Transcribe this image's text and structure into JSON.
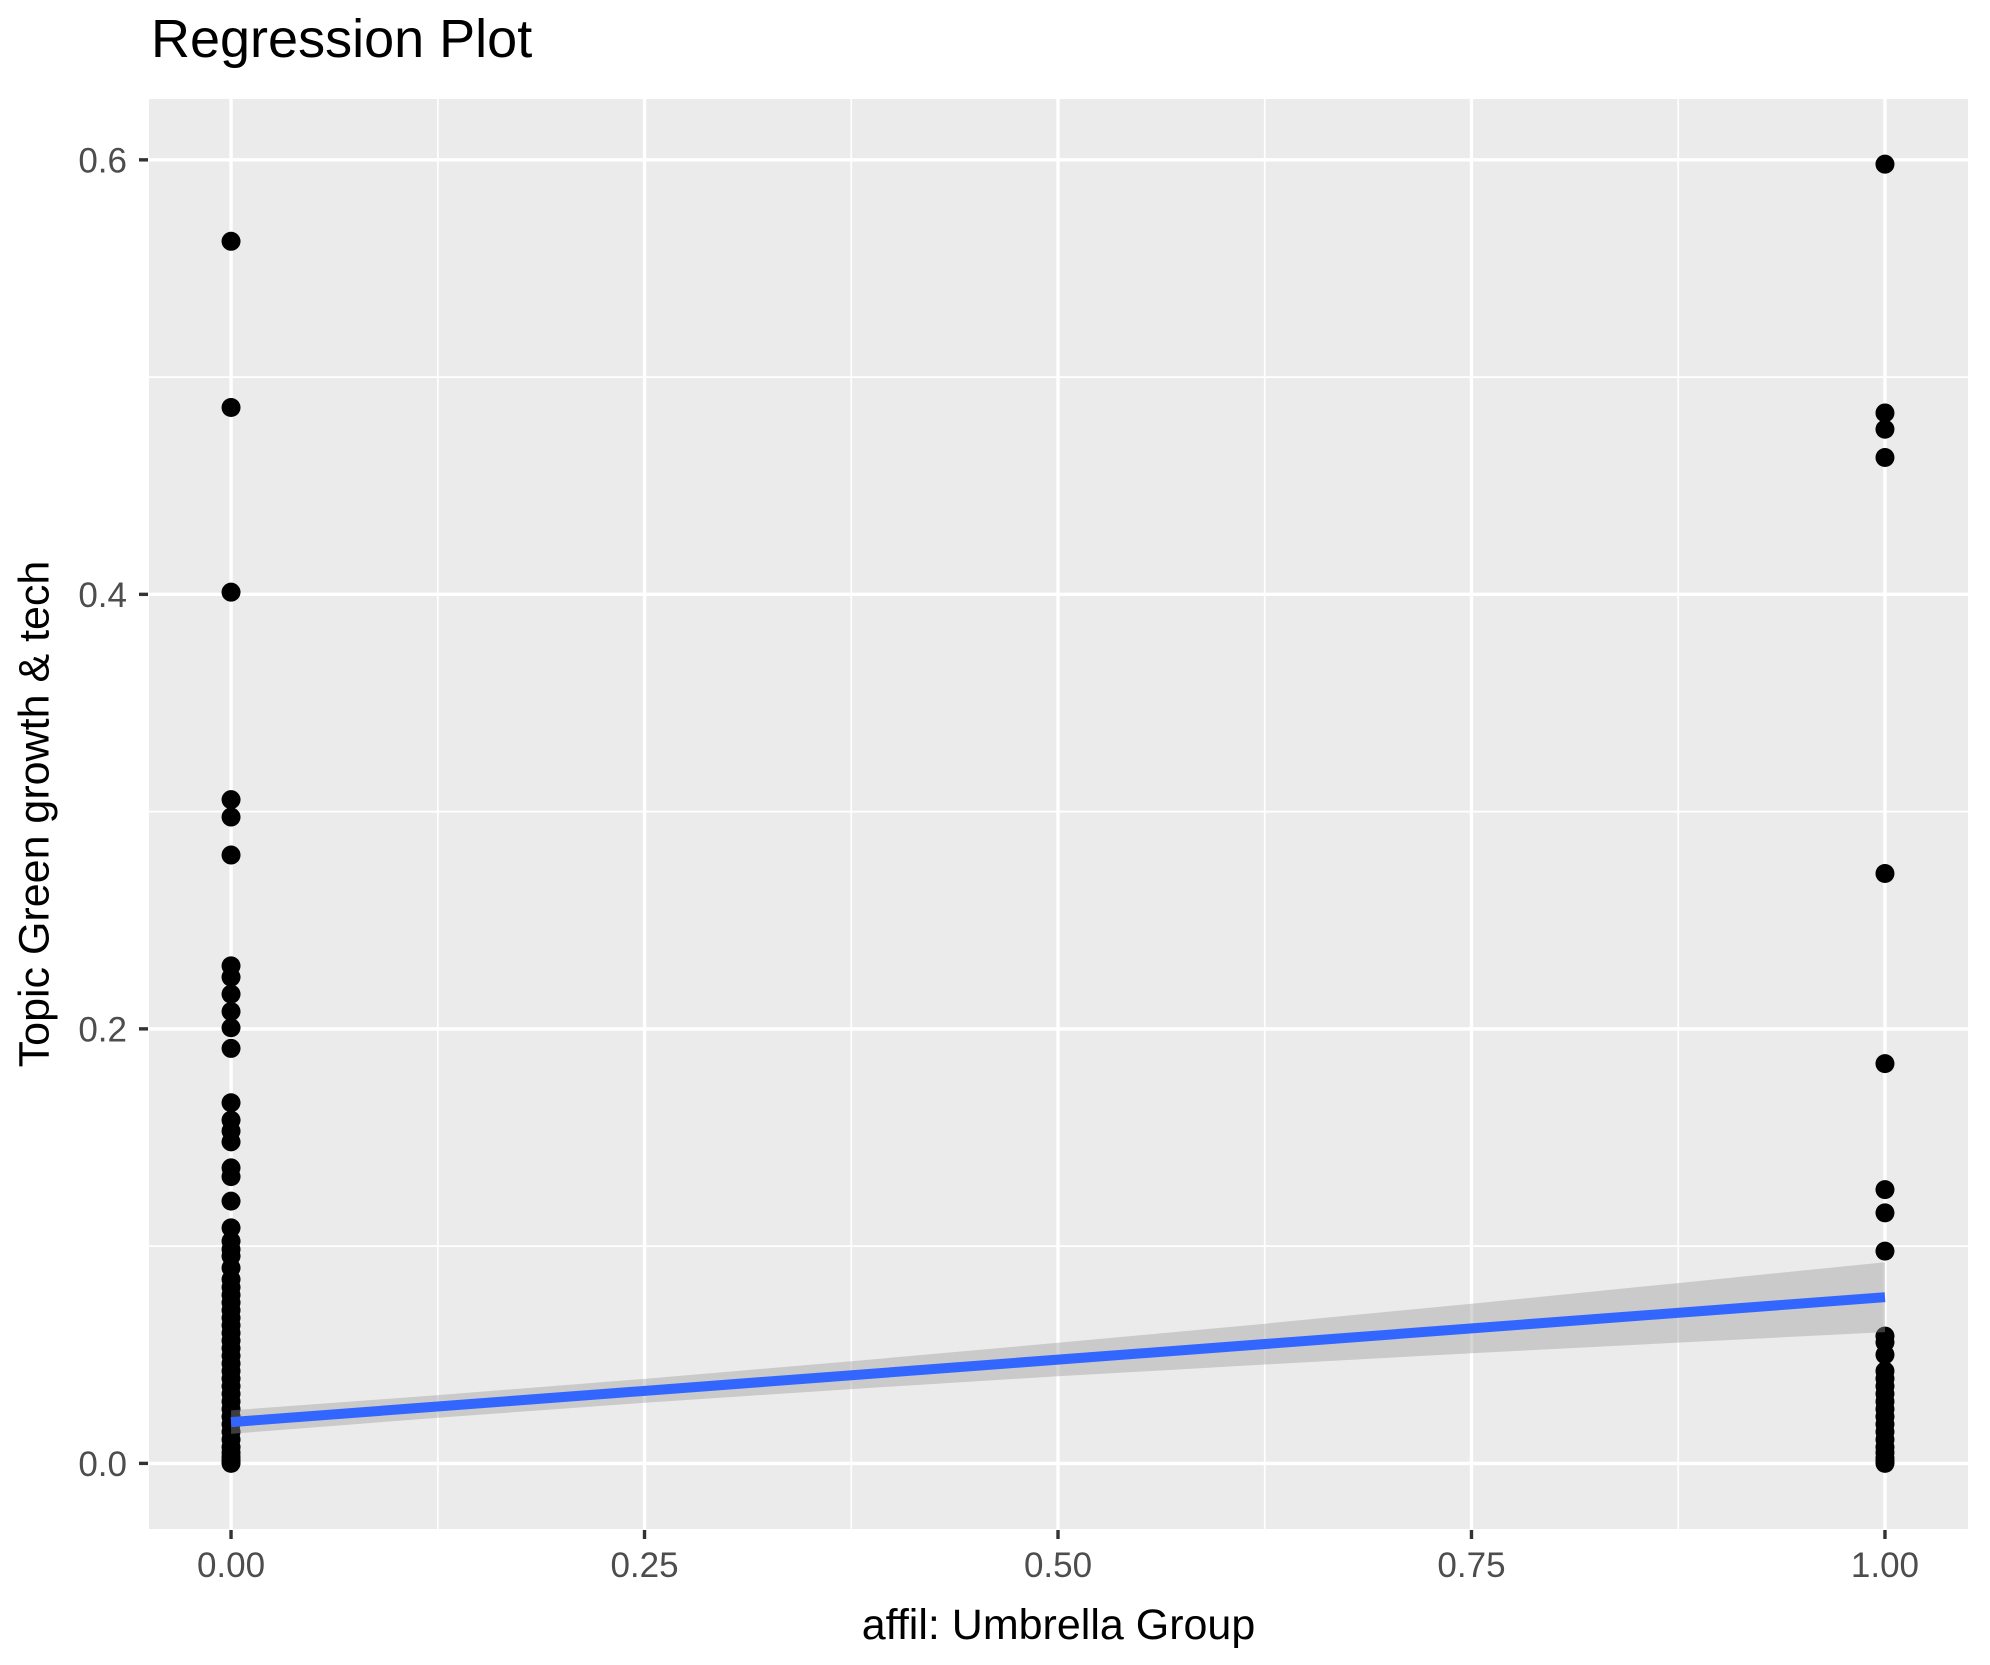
{
  "title": "Regression Plot",
  "colors": {
    "background": "#FFFFFF",
    "panel_bg": "#EBEBEB",
    "grid": "#FFFFFF",
    "point": "#000000",
    "regression_line": "#3366FF",
    "ci_band": "rgba(153,153,153,0.4)",
    "tick_mark": "#333333",
    "tick_text": "#4D4D4D",
    "axis_title_text": "#000000"
  },
  "chart_data": {
    "type": "scatter",
    "title": "Regression Plot",
    "xlabel": "affil: Umbrella Group",
    "ylabel": "Topic Green growth & tech",
    "xlim": [
      -0.0496,
      1.0502
    ],
    "ylim": [
      -0.0302,
      0.628
    ],
    "grid": true,
    "legend": "none",
    "x_ticks": [
      0.0,
      0.25,
      0.5,
      0.75,
      1.0
    ],
    "x_tick_labels": [
      "0.00",
      "0.25",
      "0.50",
      "0.75",
      "1.00"
    ],
    "x_minor_ticks": [
      0.125,
      0.375,
      0.625,
      0.875
    ],
    "y_ticks": [
      0.0,
      0.2,
      0.4,
      0.6
    ],
    "y_tick_labels": [
      "0.0",
      "0.2",
      "0.4",
      "0.6"
    ],
    "y_minor_ticks": [
      0.1,
      0.3,
      0.5
    ],
    "point_radius_px": 9.5,
    "series": [
      {
        "name": "affil = 0",
        "x": 0,
        "values": [
          0.5625,
          0.486,
          0.401,
          0.3055,
          0.2975,
          0.28,
          0.229,
          0.2238,
          0.216,
          0.208,
          0.2005,
          0.191,
          0.166,
          0.158,
          0.153,
          0.148,
          0.136,
          0.132,
          0.1207,
          0.1084,
          0.1023,
          0.0985,
          0.0954,
          0.09,
          0.0847,
          0.081,
          0.0775,
          0.074,
          0.0705,
          0.067,
          0.0635,
          0.06,
          0.0565,
          0.053,
          0.0495,
          0.046,
          0.0425,
          0.039,
          0.0355,
          0.032,
          0.0285,
          0.025,
          0.0215,
          0.018,
          0.0145,
          0.011,
          0.0075,
          0.005,
          0.003,
          0.0015,
          0.0005,
          0.0
        ]
      },
      {
        "name": "affil = 1",
        "x": 1,
        "values": [
          0.598,
          0.4835,
          0.476,
          0.463,
          0.2715,
          0.184,
          0.126,
          0.1153,
          0.0977,
          0.0586,
          0.0557,
          0.05,
          0.0425,
          0.039,
          0.0355,
          0.032,
          0.0285,
          0.025,
          0.0215,
          0.018,
          0.0145,
          0.011,
          0.0075,
          0.005,
          0.0025,
          0.001,
          0.0
        ]
      }
    ],
    "regression": {
      "x": [
        0,
        1
      ],
      "y": [
        0.019,
        0.0765
      ]
    },
    "ci_band": {
      "x": [
        0.0,
        0.125,
        0.25,
        0.375,
        0.5,
        0.625,
        0.75,
        0.875,
        1.0
      ],
      "upper": [
        0.0244,
        0.0314,
        0.0389,
        0.047,
        0.0555,
        0.0643,
        0.0735,
        0.083,
        0.0926
      ],
      "lower": [
        0.0136,
        0.021,
        0.0279,
        0.0342,
        0.0401,
        0.0455,
        0.0507,
        0.0556,
        0.0604
      ]
    }
  }
}
